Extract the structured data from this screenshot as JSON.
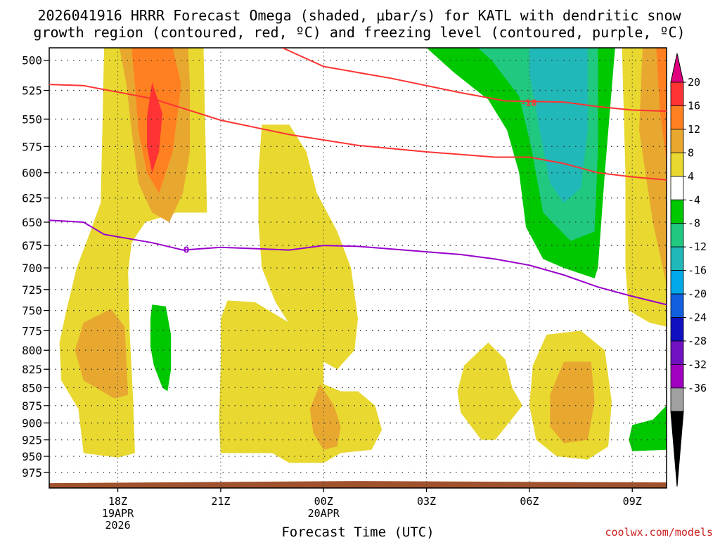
{
  "title_line1": "2026041916 HRRR Forecast Omega (shaded, μbar/s) for KATL with dendritic snow",
  "title_line2": "growth region (contoured, red, ºC) and freezing level (contoured, purple, ºC)",
  "credit": "coolwx.com/models",
  "chart_data": {
    "type": "time-height cross section",
    "xlabel": "Forecast Time (UTC)",
    "ylabel": "",
    "x_ticks": [
      {
        "hour": 2,
        "label": "18Z",
        "sub1": "19APR",
        "sub2": "2026"
      },
      {
        "hour": 5,
        "label": "21Z",
        "sub1": "",
        "sub2": ""
      },
      {
        "hour": 8,
        "label": "00Z",
        "sub1": "20APR",
        "sub2": ""
      },
      {
        "hour": 11,
        "label": "03Z",
        "sub1": "",
        "sub2": ""
      },
      {
        "hour": 14,
        "label": "06Z",
        "sub1": "",
        "sub2": ""
      },
      {
        "hour": 17,
        "label": "09Z",
        "sub1": "",
        "sub2": ""
      }
    ],
    "x_range_hours_from_16Z": [
      0,
      18
    ],
    "y_ticks": [
      500,
      525,
      550,
      575,
      600,
      625,
      650,
      675,
      700,
      725,
      750,
      775,
      800,
      825,
      850,
      875,
      900,
      925,
      950,
      975
    ],
    "y_range_hPa": [
      490,
      1000
    ],
    "y_scale": "log-pressure",
    "grid": "dotted",
    "colorbar_levels": [
      "20",
      "16",
      "12",
      "8",
      "4",
      "-4",
      "-8",
      "-12",
      "-16",
      "-20",
      "-24",
      "-28",
      "-32",
      "-36"
    ],
    "colorbar_colors": [
      "#ff3333",
      "#ff8020",
      "#e8a830",
      "#e8d830",
      "#ffffff",
      "#00c800",
      "#20c880",
      "#20b8b8",
      "#00a8e8",
      "#1060e0",
      "#1010c0",
      "#7010c0",
      "#a000c0",
      "#a0a0a0"
    ],
    "colorbar_top_color": "#e0007f",
    "colorbar_bottom_color": "#000000",
    "contours": [
      {
        "name": "-18",
        "color": "#ff3333",
        "label": "-18",
        "points": [
          [
            6.8,
            490
          ],
          [
            8,
            505
          ],
          [
            10,
            515
          ],
          [
            12,
            527
          ],
          [
            13.3,
            534
          ],
          [
            15,
            535
          ],
          [
            16,
            539
          ],
          [
            17,
            542
          ],
          [
            18,
            543
          ]
        ]
      },
      {
        "name": "-12",
        "color": "#ff3333",
        "label": "",
        "points": [
          [
            0,
            520
          ],
          [
            1,
            521
          ],
          [
            3,
            532
          ],
          [
            5,
            551
          ],
          [
            7,
            564
          ],
          [
            9,
            574
          ],
          [
            11,
            580
          ],
          [
            13,
            585
          ],
          [
            14,
            585
          ],
          [
            15,
            591
          ],
          [
            16,
            600
          ],
          [
            17,
            604
          ],
          [
            18,
            607
          ]
        ]
      },
      {
        "name": "0",
        "color": "#9900cc",
        "label": "0",
        "points": [
          [
            0,
            648
          ],
          [
            1,
            650
          ],
          [
            1.6,
            663
          ],
          [
            3,
            672
          ],
          [
            3.9,
            680
          ],
          [
            5,
            677
          ],
          [
            7,
            680
          ],
          [
            8,
            675
          ],
          [
            9,
            676
          ],
          [
            11,
            682
          ],
          [
            12,
            685
          ],
          [
            13,
            690
          ],
          [
            14,
            697
          ],
          [
            15,
            708
          ],
          [
            16,
            722
          ],
          [
            17,
            733
          ],
          [
            18,
            743
          ]
        ]
      }
    ],
    "omega_regions": [
      {
        "level": "4",
        "color": "#e8d830",
        "points": [
          [
            1.6,
            490
          ],
          [
            4.5,
            490
          ],
          [
            4.6,
            640
          ],
          [
            3.7,
            640
          ],
          [
            2.8,
            650
          ],
          [
            2.4,
            672
          ],
          [
            2.3,
            705
          ],
          [
            2.35,
            780
          ],
          [
            2.45,
            870
          ],
          [
            2.5,
            945
          ],
          [
            2.0,
            952
          ],
          [
            1.0,
            945
          ],
          [
            0.85,
            880
          ],
          [
            0.35,
            840
          ],
          [
            0.3,
            790
          ],
          [
            0.5,
            750
          ],
          [
            0.8,
            700
          ],
          [
            1.2,
            660
          ],
          [
            1.5,
            630
          ],
          [
            1.55,
            560
          ]
        ]
      },
      {
        "level": "8",
        "color": "#e8a830",
        "points": [
          [
            2.05,
            490
          ],
          [
            4.05,
            490
          ],
          [
            4.1,
            520
          ],
          [
            4.1,
            580
          ],
          [
            3.9,
            620
          ],
          [
            3.5,
            650
          ],
          [
            3.0,
            640
          ],
          [
            2.6,
            610
          ],
          [
            2.4,
            560
          ],
          [
            2.25,
            520
          ]
        ]
      },
      {
        "level": "12",
        "color": "#ff8020",
        "points": [
          [
            2.4,
            490
          ],
          [
            3.6,
            490
          ],
          [
            3.85,
            520
          ],
          [
            3.6,
            580
          ],
          [
            3.2,
            620
          ],
          [
            2.85,
            600
          ],
          [
            2.6,
            560
          ],
          [
            2.5,
            520
          ]
        ]
      },
      {
        "level": "16",
        "color": "#ff3333",
        "points": [
          [
            3.0,
            518
          ],
          [
            3.3,
            545
          ],
          [
            3.2,
            580
          ],
          [
            3.0,
            600
          ],
          [
            2.85,
            575
          ],
          [
            2.85,
            548
          ]
        ]
      },
      {
        "level": "8",
        "color": "#e8a830",
        "points": [
          [
            1.8,
            748
          ],
          [
            2.2,
            770
          ],
          [
            2.3,
            860
          ],
          [
            1.9,
            865
          ],
          [
            1.0,
            840
          ],
          [
            0.75,
            800
          ],
          [
            1.0,
            765
          ]
        ]
      },
      {
        "level": "-4",
        "color": "#00c800",
        "points": [
          [
            3.0,
            743
          ],
          [
            3.4,
            745
          ],
          [
            3.55,
            780
          ],
          [
            3.55,
            825
          ],
          [
            3.45,
            855
          ],
          [
            3.3,
            850
          ],
          [
            3.05,
            820
          ],
          [
            2.95,
            795
          ],
          [
            2.95,
            760
          ]
        ]
      },
      {
        "level": "4",
        "color": "#e8d830",
        "points": [
          [
            6.2,
            555
          ],
          [
            7.0,
            555
          ],
          [
            7.5,
            580
          ],
          [
            7.8,
            620
          ],
          [
            8.4,
            660
          ],
          [
            8.8,
            700
          ],
          [
            9.0,
            760
          ],
          [
            8.9,
            800
          ],
          [
            8.4,
            825
          ],
          [
            7.8,
            810
          ],
          [
            7.2,
            780
          ],
          [
            6.6,
            740
          ],
          [
            6.2,
            700
          ],
          [
            6.1,
            650
          ],
          [
            6.1,
            600
          ]
        ]
      },
      {
        "level": "4",
        "color": "#e8d830",
        "points": [
          [
            5.2,
            738
          ],
          [
            6.0,
            740
          ],
          [
            7.0,
            765
          ],
          [
            7.6,
            780
          ],
          [
            8.0,
            805
          ],
          [
            8.0,
            845
          ],
          [
            8.5,
            855
          ],
          [
            9.0,
            855
          ],
          [
            9.5,
            875
          ],
          [
            9.7,
            910
          ],
          [
            9.4,
            940
          ],
          [
            8.5,
            945
          ],
          [
            8.0,
            960
          ],
          [
            7.0,
            960
          ],
          [
            6.5,
            945
          ],
          [
            5.0,
            945
          ],
          [
            4.95,
            900
          ],
          [
            5.0,
            820
          ],
          [
            5.0,
            760
          ]
        ]
      },
      {
        "level": "8",
        "color": "#e8a830",
        "points": [
          [
            7.9,
            845
          ],
          [
            8.3,
            875
          ],
          [
            8.5,
            905
          ],
          [
            8.4,
            935
          ],
          [
            8.0,
            940
          ],
          [
            7.7,
            915
          ],
          [
            7.6,
            880
          ]
        ]
      },
      {
        "level": "4",
        "color": "#e8d830",
        "points": [
          [
            12.8,
            790
          ],
          [
            13.3,
            812
          ],
          [
            13.5,
            850
          ],
          [
            13.8,
            875
          ],
          [
            13.4,
            900
          ],
          [
            13.0,
            925
          ],
          [
            12.6,
            925
          ],
          [
            12.3,
            905
          ],
          [
            12.0,
            885
          ],
          [
            11.9,
            855
          ],
          [
            12.1,
            820
          ]
        ]
      },
      {
        "level": "4",
        "color": "#e8d830",
        "points": [
          [
            14.5,
            780
          ],
          [
            15.5,
            775
          ],
          [
            16.2,
            800
          ],
          [
            16.4,
            870
          ],
          [
            16.3,
            935
          ],
          [
            15.7,
            955
          ],
          [
            14.8,
            950
          ],
          [
            14.2,
            925
          ],
          [
            14.0,
            875
          ],
          [
            14.1,
            820
          ]
        ]
      },
      {
        "level": "8",
        "color": "#e8a830",
        "points": [
          [
            15.0,
            815
          ],
          [
            15.8,
            815
          ],
          [
            15.9,
            870
          ],
          [
            15.7,
            925
          ],
          [
            15.0,
            930
          ],
          [
            14.6,
            905
          ],
          [
            14.6,
            860
          ]
        ]
      },
      {
        "level": "4",
        "color": "#e8d830",
        "points": [
          [
            16.7,
            490
          ],
          [
            18.0,
            490
          ],
          [
            18.0,
            770
          ],
          [
            17.5,
            765
          ],
          [
            16.9,
            750
          ],
          [
            16.8,
            700
          ],
          [
            16.8,
            600
          ]
        ]
      },
      {
        "level": "8",
        "color": "#e8a830",
        "points": [
          [
            17.3,
            490
          ],
          [
            18.0,
            490
          ],
          [
            18.0,
            720
          ],
          [
            17.6,
            650
          ],
          [
            17.2,
            560
          ]
        ]
      },
      {
        "level": "12",
        "color": "#ff8020",
        "points": [
          [
            17.7,
            490
          ],
          [
            18.0,
            490
          ],
          [
            18.0,
            590
          ],
          [
            17.8,
            540
          ]
        ]
      },
      {
        "level": "-4",
        "color": "#00c800",
        "points": [
          [
            11.0,
            490
          ],
          [
            16.5,
            490
          ],
          [
            16.2,
            600
          ],
          [
            16.0,
            700
          ],
          [
            15.9,
            712
          ],
          [
            15.0,
            700
          ],
          [
            14.4,
            690
          ],
          [
            13.9,
            655
          ],
          [
            13.7,
            600
          ],
          [
            13.35,
            560
          ],
          [
            12.8,
            533
          ],
          [
            11.8,
            510
          ]
        ]
      },
      {
        "level": "-8",
        "color": "#20c880",
        "points": [
          [
            12.5,
            490
          ],
          [
            16.0,
            490
          ],
          [
            16.0,
            580
          ],
          [
            15.9,
            660
          ],
          [
            15.2,
            670
          ],
          [
            14.4,
            640
          ],
          [
            14.05,
            575
          ],
          [
            13.7,
            530
          ],
          [
            12.9,
            500
          ]
        ]
      },
      {
        "level": "-12",
        "color": "#20b8b8",
        "points": [
          [
            14.0,
            490
          ],
          [
            15.7,
            490
          ],
          [
            15.7,
            560
          ],
          [
            15.5,
            615
          ],
          [
            15.0,
            630
          ],
          [
            14.6,
            610
          ],
          [
            14.3,
            560
          ],
          [
            14.0,
            510
          ]
        ]
      },
      {
        "level": "-4",
        "color": "#00c800",
        "points": [
          [
            18.0,
            875
          ],
          [
            18.0,
            940
          ],
          [
            17.0,
            942
          ],
          [
            16.9,
            925
          ],
          [
            17.0,
            903
          ],
          [
            17.6,
            895
          ]
        ]
      }
    ],
    "surface_band": {
      "color": "#a0522d",
      "top_hPa": 990
    }
  }
}
